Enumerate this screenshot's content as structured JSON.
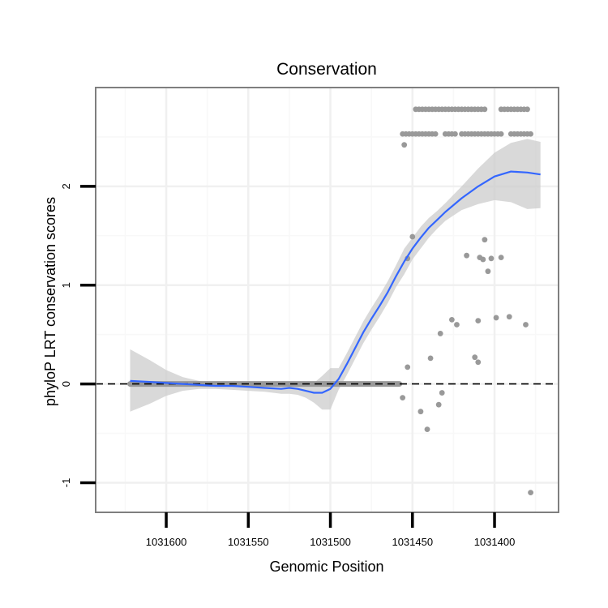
{
  "chart_data": {
    "type": "scatter",
    "title": "Conservation",
    "xlabel": "Genomic Position",
    "ylabel": "phyloP LRT conservation scores",
    "x_reversed": true,
    "xlim": [
      1031643,
      1031361
    ],
    "ylim": [
      -1.3,
      3.0
    ],
    "x_ticks": [
      1031600,
      1031550,
      1031500,
      1031450,
      1031400
    ],
    "x_tick_labels": [
      "1031600",
      "1031550",
      "1031500",
      "1031450",
      "1031400"
    ],
    "y_ticks": [
      -1,
      0,
      1,
      2
    ],
    "y_tick_labels": [
      "-1",
      "0",
      "1",
      "2"
    ],
    "grid": true,
    "reference_line": {
      "y": 0,
      "style": "dashed"
    },
    "points": [
      {
        "x": 1031455,
        "y": 2.42
      },
      {
        "x": 1031453,
        "y": 1.27
      },
      {
        "x": 1031450,
        "y": 1.49
      },
      {
        "x": 1031406,
        "y": 1.46
      },
      {
        "x": 1031409,
        "y": 1.28
      },
      {
        "x": 1031407,
        "y": 1.26
      },
      {
        "x": 1031402,
        "y": 1.27
      },
      {
        "x": 1031396,
        "y": 1.28
      },
      {
        "x": 1031404,
        "y": 1.14
      },
      {
        "x": 1031417,
        "y": 1.3
      },
      {
        "x": 1031426,
        "y": 0.65
      },
      {
        "x": 1031423,
        "y": 0.6
      },
      {
        "x": 1031410,
        "y": 0.64
      },
      {
        "x": 1031399,
        "y": 0.67
      },
      {
        "x": 1031391,
        "y": 0.68
      },
      {
        "x": 1031381,
        "y": 0.6
      },
      {
        "x": 1031433,
        "y": 0.51
      },
      {
        "x": 1031412,
        "y": 0.27
      },
      {
        "x": 1031439,
        "y": 0.26
      },
      {
        "x": 1031410,
        "y": 0.22
      },
      {
        "x": 1031453,
        "y": 0.17
      },
      {
        "x": 1031456,
        "y": -0.14
      },
      {
        "x": 1031445,
        "y": -0.28
      },
      {
        "x": 1031434,
        "y": -0.21
      },
      {
        "x": 1031432,
        "y": -0.09
      },
      {
        "x": 1031441,
        "y": -0.46
      },
      {
        "x": 1031378,
        "y": -1.1
      }
    ],
    "upper_band_y": 2.78,
    "upper_band_x": [
      1031448,
      1031446,
      1031444,
      1031442,
      1031440,
      1031438,
      1031436,
      1031434,
      1031432,
      1031430,
      1031428,
      1031426,
      1031424,
      1031422,
      1031420,
      1031418,
      1031416,
      1031414,
      1031412,
      1031410,
      1031408,
      1031406,
      1031396,
      1031394,
      1031392,
      1031390,
      1031388,
      1031386,
      1031384,
      1031382,
      1031380
    ],
    "middle_band_y": 2.53,
    "middle_band_x": [
      1031456,
      1031454,
      1031452,
      1031450,
      1031448,
      1031446,
      1031444,
      1031442,
      1031440,
      1031438,
      1031436,
      1031430,
      1031428,
      1031426,
      1031424,
      1031420,
      1031418,
      1031416,
      1031414,
      1031412,
      1031410,
      1031408,
      1031406,
      1031404,
      1031402,
      1031400,
      1031398,
      1031396,
      1031390,
      1031388,
      1031386,
      1031384,
      1031382,
      1031380,
      1031378
    ],
    "zero_band": {
      "x_from": 1031622,
      "x_to": 1031458,
      "y": 0
    },
    "smooth_fit": {
      "x": [
        1031622,
        1031610,
        1031600,
        1031590,
        1031580,
        1031570,
        1031560,
        1031550,
        1031540,
        1031530,
        1031525,
        1031520,
        1031515,
        1031510,
        1031505,
        1031500,
        1031495,
        1031490,
        1031485,
        1031480,
        1031475,
        1031470,
        1031465,
        1031460,
        1031455,
        1031450,
        1031445,
        1031440,
        1031435,
        1031430,
        1031420,
        1031410,
        1031400,
        1031390,
        1031380,
        1031372
      ],
      "y": [
        0.03,
        0.02,
        0.01,
        0.0,
        -0.01,
        -0.02,
        -0.02,
        -0.03,
        -0.04,
        -0.05,
        -0.04,
        -0.05,
        -0.07,
        -0.09,
        -0.09,
        -0.05,
        0.05,
        0.2,
        0.36,
        0.52,
        0.66,
        0.79,
        0.93,
        1.09,
        1.24,
        1.37,
        1.48,
        1.58,
        1.66,
        1.74,
        1.88,
        2.0,
        2.1,
        2.15,
        2.14,
        2.12
      ],
      "lower": [
        -0.28,
        -0.2,
        -0.12,
        -0.07,
        -0.05,
        -0.05,
        -0.06,
        -0.07,
        -0.08,
        -0.1,
        -0.1,
        -0.11,
        -0.14,
        -0.19,
        -0.26,
        -0.26,
        -0.06,
        0.09,
        0.25,
        0.41,
        0.55,
        0.68,
        0.82,
        0.98,
        1.11,
        1.26,
        1.37,
        1.48,
        1.57,
        1.65,
        1.76,
        1.82,
        1.86,
        1.84,
        1.77,
        1.78
      ],
      "upper": [
        0.35,
        0.24,
        0.14,
        0.07,
        0.03,
        0.01,
        0.01,
        0.01,
        0.0,
        0.0,
        0.02,
        0.01,
        0.0,
        0.01,
        0.08,
        0.16,
        0.16,
        0.31,
        0.47,
        0.63,
        0.77,
        0.9,
        1.04,
        1.2,
        1.37,
        1.48,
        1.59,
        1.68,
        1.75,
        1.83,
        2.0,
        2.18,
        2.34,
        2.44,
        2.48,
        2.45
      ]
    }
  },
  "colors": {
    "background": "#ffffff",
    "panel_border": "#7f7f7f",
    "grid_major": "#f0f0f0",
    "grid_minor": "#f8f8f8",
    "points": "#999999",
    "smooth_line": "#3366ff",
    "confidence_band": "#cccccc",
    "reference_line": "#000000"
  }
}
